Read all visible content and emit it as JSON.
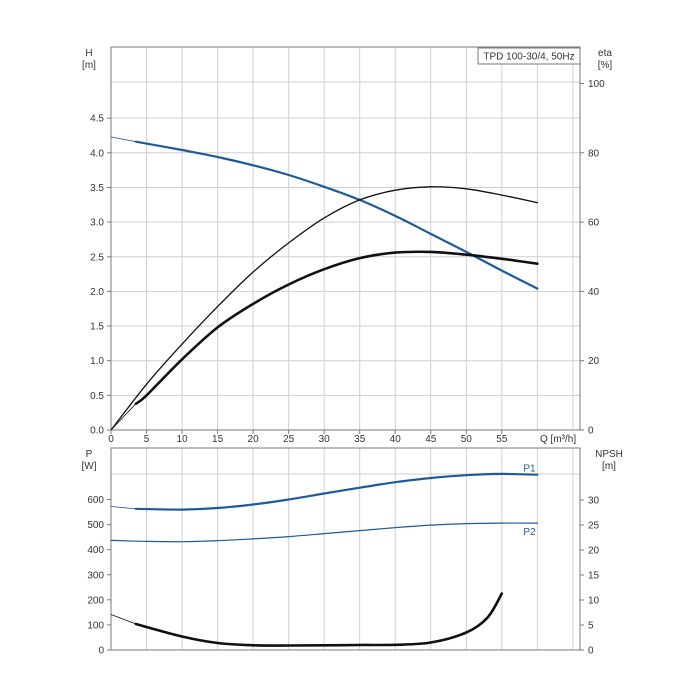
{
  "colors": {
    "blue": "#1f5a9a",
    "black": "#111111",
    "grid": "#cfcfcf",
    "frame": "#7a7a7a"
  },
  "chart_data": [
    {
      "type": "line",
      "title": "TPD 100-30/4, 50Hz",
      "xlabel": "Q [m³/h]",
      "ylabel_left": [
        "H",
        "[m]"
      ],
      "ylabel_right": [
        "eta",
        "[%]"
      ],
      "x_ticks": [
        "0",
        "5",
        "10",
        "15",
        "20",
        "25",
        "30",
        "35",
        "40",
        "45",
        "50",
        "55"
      ],
      "y_ticks_left": [
        "0.0",
        "0.5",
        "1.0",
        "1.5",
        "2.0",
        "2.5",
        "3.0",
        "3.5",
        "4.0",
        "4.5"
      ],
      "y_ticks_right": [
        "0",
        "20",
        "40",
        "60",
        "80",
        "100"
      ],
      "xlim": [
        0,
        66
      ],
      "ylim": [
        0,
        5
      ],
      "grid": true,
      "series": [
        {
          "axis": "left",
          "color": "blue",
          "width": 2.2,
          "x": [
            3.5,
            10,
            15,
            20,
            25,
            30,
            35,
            40,
            45,
            50,
            55,
            60
          ],
          "y": [
            4.16,
            4.04,
            3.94,
            3.82,
            3.68,
            3.51,
            3.32,
            3.09,
            2.83,
            2.57,
            2.3,
            2.04
          ],
          "ext_x": [
            0,
            3.5
          ],
          "ext_y": [
            4.23,
            4.16
          ]
        },
        {
          "axis": "right",
          "color": "black",
          "width": 1.3,
          "x": [
            0,
            5,
            10,
            15,
            20,
            25,
            30,
            35,
            40,
            45,
            50,
            55,
            60
          ],
          "y": [
            0,
            13.2,
            24.8,
            35.6,
            45.6,
            54.0,
            61.2,
            66.4,
            69.2,
            70.2,
            69.6,
            67.8,
            65.6
          ]
        },
        {
          "axis": "right",
          "color": "black",
          "width": 2.6,
          "x": [
            3.5,
            5,
            10,
            15,
            20,
            25,
            30,
            35,
            40,
            45,
            50,
            55,
            60
          ],
          "y": [
            7.6,
            10.0,
            20.4,
            29.6,
            36.4,
            42.0,
            46.4,
            49.6,
            51.2,
            51.4,
            50.6,
            49.4,
            48.0
          ],
          "ext_x": [
            0,
            3.5
          ],
          "ext_y": [
            0,
            7.6
          ]
        }
      ]
    },
    {
      "type": "line",
      "title": "",
      "xlabel": "",
      "ylabel_left": [
        "P",
        "[W]"
      ],
      "ylabel_right": [
        "NPSH",
        "[m]"
      ],
      "y_ticks_left": [
        "0",
        "100",
        "200",
        "300",
        "400",
        "500",
        "600"
      ],
      "y_ticks_right": [
        "0",
        "5",
        "10",
        "15",
        "20",
        "25",
        "30"
      ],
      "xlim": [
        0,
        66
      ],
      "ylim": [
        0,
        700
      ],
      "grid": true,
      "series": [
        {
          "name": "P1",
          "axis": "left",
          "color": "blue",
          "width": 2.2,
          "x": [
            3.5,
            10,
            15,
            20,
            25,
            30,
            35,
            40,
            45,
            50,
            55,
            60
          ],
          "y": [
            563,
            560,
            566,
            580,
            600,
            624,
            647,
            669,
            686,
            697,
            702,
            699
          ],
          "ext_x": [
            0,
            3.5
          ],
          "ext_y": [
            572,
            563
          ]
        },
        {
          "name": "P2",
          "axis": "left",
          "color": "blue",
          "width": 1.2,
          "x": [
            0,
            5,
            10,
            15,
            20,
            25,
            30,
            35,
            40,
            45,
            50,
            55,
            60
          ],
          "y": [
            437,
            433,
            432,
            436,
            443,
            452,
            464,
            476,
            488,
            498,
            504,
            506,
            506
          ]
        },
        {
          "axis": "right",
          "color": "black",
          "width": 2.6,
          "x": [
            3.5,
            10,
            15,
            20,
            25,
            30,
            35,
            40,
            45,
            50,
            53,
            55
          ],
          "y": [
            5.2,
            2.7,
            1.4,
            0.95,
            0.9,
            0.95,
            1.0,
            1.05,
            1.5,
            3.5,
            6.5,
            11.3
          ],
          "ext_x": [
            0,
            3.5
          ],
          "ext_y": [
            7.1,
            5.2
          ]
        }
      ]
    }
  ]
}
